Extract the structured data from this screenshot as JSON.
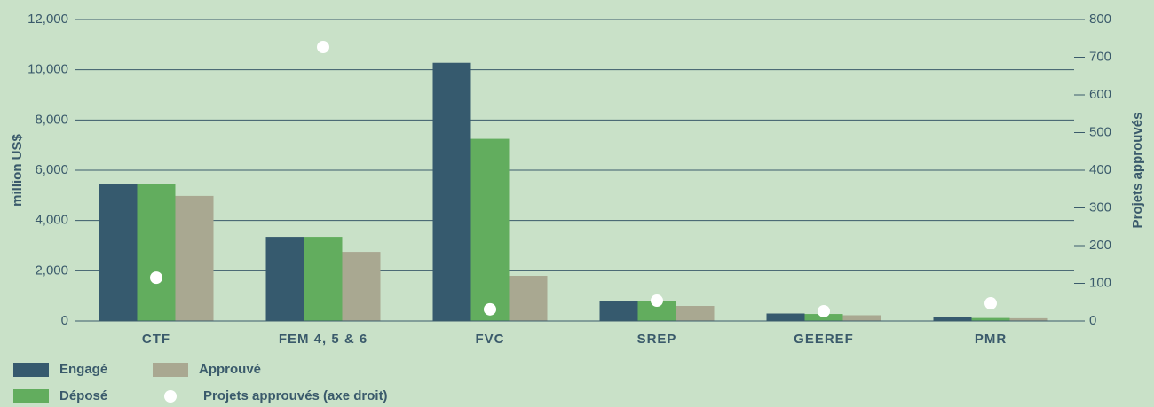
{
  "chart_data": {
    "type": "bar",
    "categories": [
      "CTF",
      "FEM 4, 5 & 6",
      "FVC",
      "SREP",
      "GEEREF",
      "PMR"
    ],
    "series": [
      {
        "name": "Engagé",
        "color": "#365a6e",
        "values": [
          5450,
          3350,
          10280,
          780,
          300,
          170
        ]
      },
      {
        "name": "Déposé",
        "color": "#62ad5e",
        "values": [
          5450,
          3350,
          7250,
          780,
          280,
          120
        ]
      },
      {
        "name": "Approuvé",
        "color": "#a9a891",
        "values": [
          4980,
          2750,
          1800,
          600,
          230,
          110
        ]
      },
      {
        "name": "Projets approuvés (axe droit)",
        "color": "#ffffff",
        "axis": "y2",
        "values": [
          115,
          727,
          31,
          54,
          26,
          47
        ]
      }
    ],
    "ylabel": "million US$",
    "y2label": "Projets approuvés",
    "ylim": [
      0,
      12000
    ],
    "yticks": [
      0,
      {
        "value": 2000,
        "label": "2,000"
      },
      {
        "value": 4000,
        "label": "4,000"
      },
      {
        "value": 6000,
        "label": "6,000"
      },
      {
        "value": 8000,
        "label": "8,000"
      },
      {
        "value": 10000,
        "label": "10,000"
      },
      {
        "value": 12000,
        "label": "12,000"
      }
    ],
    "y2lim": [
      0,
      800
    ],
    "y2ticks": [
      0,
      100,
      200,
      300,
      400,
      500,
      600,
      700,
      800
    ],
    "grid": true
  }
}
